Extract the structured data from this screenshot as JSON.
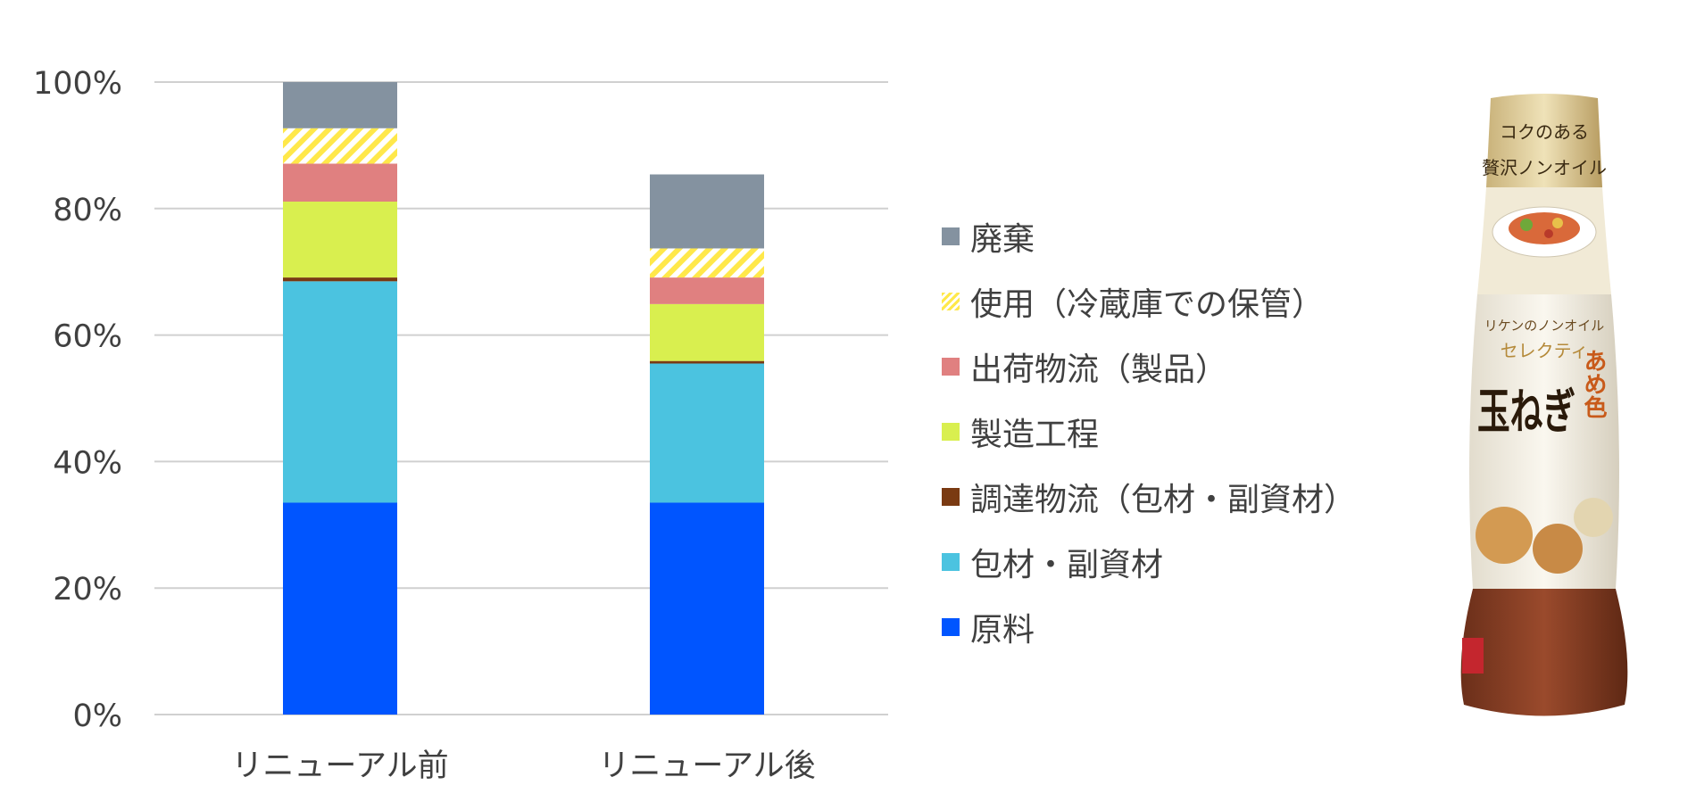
{
  "chart_data": {
    "type": "bar",
    "stacked": true,
    "categories": [
      "リニューアル前",
      "リニューアル後"
    ],
    "yticks": [
      "0%",
      "20%",
      "40%",
      "60%",
      "80%",
      "100%"
    ],
    "ylim": [
      0,
      100
    ],
    "grid": true,
    "legend_position": "right",
    "series": [
      {
        "name": "原料",
        "color": "#0055ff",
        "values": [
          33.5,
          33.5
        ]
      },
      {
        "name": "包材・副資材",
        "color": "#4bc3e0",
        "values": [
          35.0,
          22.0
        ]
      },
      {
        "name": "調達物流（包材・副資材）",
        "color": "#7a3a12",
        "values": [
          0.6,
          0.4
        ]
      },
      {
        "name": "製造工程",
        "color": "#d9ef4f",
        "values": [
          12.0,
          9.0
        ]
      },
      {
        "name": "出荷物流（製品）",
        "color": "#e08080",
        "values": [
          6.0,
          4.2
        ]
      },
      {
        "name": "使用（冷蔵庫での保管）",
        "color": "#ffe84a",
        "hatch": true,
        "values": [
          5.6,
          4.6
        ]
      },
      {
        "name": "廃棄",
        "color": "#8492a0",
        "values": [
          7.3,
          11.7
        ]
      }
    ]
  },
  "product": {
    "cap_text_1": "コクのある",
    "cap_text_2": "贅沢ノンオイル",
    "brand_line": "リケンのノンオイル",
    "sub_brand": "セレクティ",
    "name_main": "玉ねぎ",
    "name_side": "あめ色"
  }
}
